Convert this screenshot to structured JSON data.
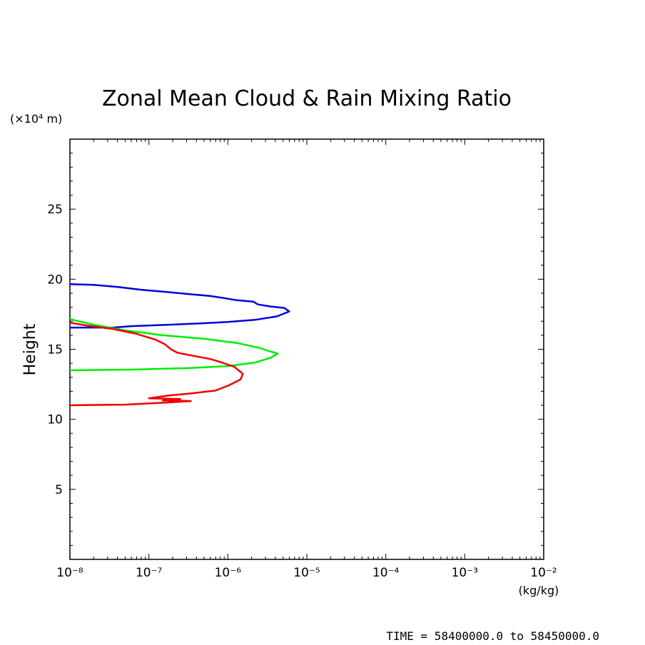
{
  "chart_data": {
    "type": "line",
    "title": "Zonal Mean Cloud & Rain Mixing Ratio",
    "ylabel": "Height",
    "y_unit_label": "(×10⁴ m)",
    "x_unit_label": "(kg/kg)",
    "x_scale": "log",
    "xlim": [
      1e-08,
      0.01
    ],
    "ylim": [
      0,
      30
    ],
    "x_ticks": [
      {
        "value": 1e-08,
        "label": "10⁻⁸"
      },
      {
        "value": 1e-07,
        "label": "10⁻⁷"
      },
      {
        "value": 1e-06,
        "label": "10⁻⁶"
      },
      {
        "value": 1e-05,
        "label": "10⁻⁵"
      },
      {
        "value": 0.0001,
        "label": "10⁻⁴"
      },
      {
        "value": 0.001,
        "label": "10⁻³"
      },
      {
        "value": 0.01,
        "label": "10⁻²"
      }
    ],
    "y_ticks": [
      {
        "value": 5,
        "label": "5"
      },
      {
        "value": 10,
        "label": "10"
      },
      {
        "value": 15,
        "label": "15"
      },
      {
        "value": 20,
        "label": "20"
      },
      {
        "value": 25,
        "label": "25"
      }
    ],
    "grid": false,
    "series": [
      {
        "color": "#0000dd",
        "points": [
          [
            1e-08,
            19.65
          ],
          [
            2e-08,
            19.6
          ],
          [
            4e-08,
            19.45
          ],
          [
            8e-08,
            19.25
          ],
          [
            1.6e-07,
            19.1
          ],
          [
            3e-07,
            18.95
          ],
          [
            6e-07,
            18.8
          ],
          [
            9e-07,
            18.65
          ],
          [
            1.3e-06,
            18.5
          ],
          [
            2.1e-06,
            18.4
          ],
          [
            2.4e-06,
            18.2
          ],
          [
            3.5e-06,
            18.05
          ],
          [
            5.2e-06,
            17.95
          ],
          [
            6e-06,
            17.7
          ],
          [
            4.2e-06,
            17.35
          ],
          [
            2.2e-06,
            17.1
          ],
          [
            1e-06,
            16.95
          ],
          [
            4.5e-07,
            16.85
          ],
          [
            1.8e-07,
            16.75
          ],
          [
            6e-08,
            16.65
          ],
          [
            3.5e-08,
            16.55
          ],
          [
            1e-08,
            16.55
          ]
        ]
      },
      {
        "color": "#00ee00",
        "points": [
          [
            1e-08,
            17.15
          ],
          [
            2e-08,
            16.75
          ],
          [
            5e-08,
            16.35
          ],
          [
            1.5e-07,
            16.0
          ],
          [
            5e-07,
            15.75
          ],
          [
            1.3e-06,
            15.45
          ],
          [
            2.5e-06,
            15.1
          ],
          [
            3.4e-06,
            14.85
          ],
          [
            4.3e-06,
            14.7
          ],
          [
            3.5e-06,
            14.4
          ],
          [
            2.2e-06,
            14.05
          ],
          [
            1e-06,
            13.8
          ],
          [
            3e-07,
            13.65
          ],
          [
            6e-08,
            13.55
          ],
          [
            1e-08,
            13.5
          ]
        ]
      },
      {
        "color": "#ee0000",
        "points": [
          [
            1e-08,
            16.9
          ],
          [
            1.6e-08,
            16.7
          ],
          [
            3.5e-08,
            16.45
          ],
          [
            7e-08,
            16.1
          ],
          [
            1.2e-07,
            15.7
          ],
          [
            1.6e-07,
            15.35
          ],
          [
            1.9e-07,
            15.0
          ],
          [
            2.3e-07,
            14.75
          ],
          [
            3.5e-07,
            14.55
          ],
          [
            6e-07,
            14.3
          ],
          [
            8.5e-07,
            14.05
          ],
          [
            1.2e-06,
            13.75
          ],
          [
            1.55e-06,
            13.25
          ],
          [
            1.45e-06,
            12.85
          ],
          [
            1.05e-06,
            12.45
          ],
          [
            7e-07,
            12.05
          ],
          [
            3.5e-07,
            11.85
          ],
          [
            1.8e-07,
            11.7
          ],
          [
            1e-07,
            11.5
          ],
          [
            2.5e-07,
            11.45
          ],
          [
            1.5e-07,
            11.35
          ],
          [
            3.4e-07,
            11.3
          ],
          [
            1.7e-07,
            11.2
          ],
          [
            5e-08,
            11.05
          ],
          [
            1e-08,
            11.0
          ]
        ]
      }
    ]
  },
  "footer": {
    "time_text": "TIME = 58400000.0 to 58450000.0"
  }
}
